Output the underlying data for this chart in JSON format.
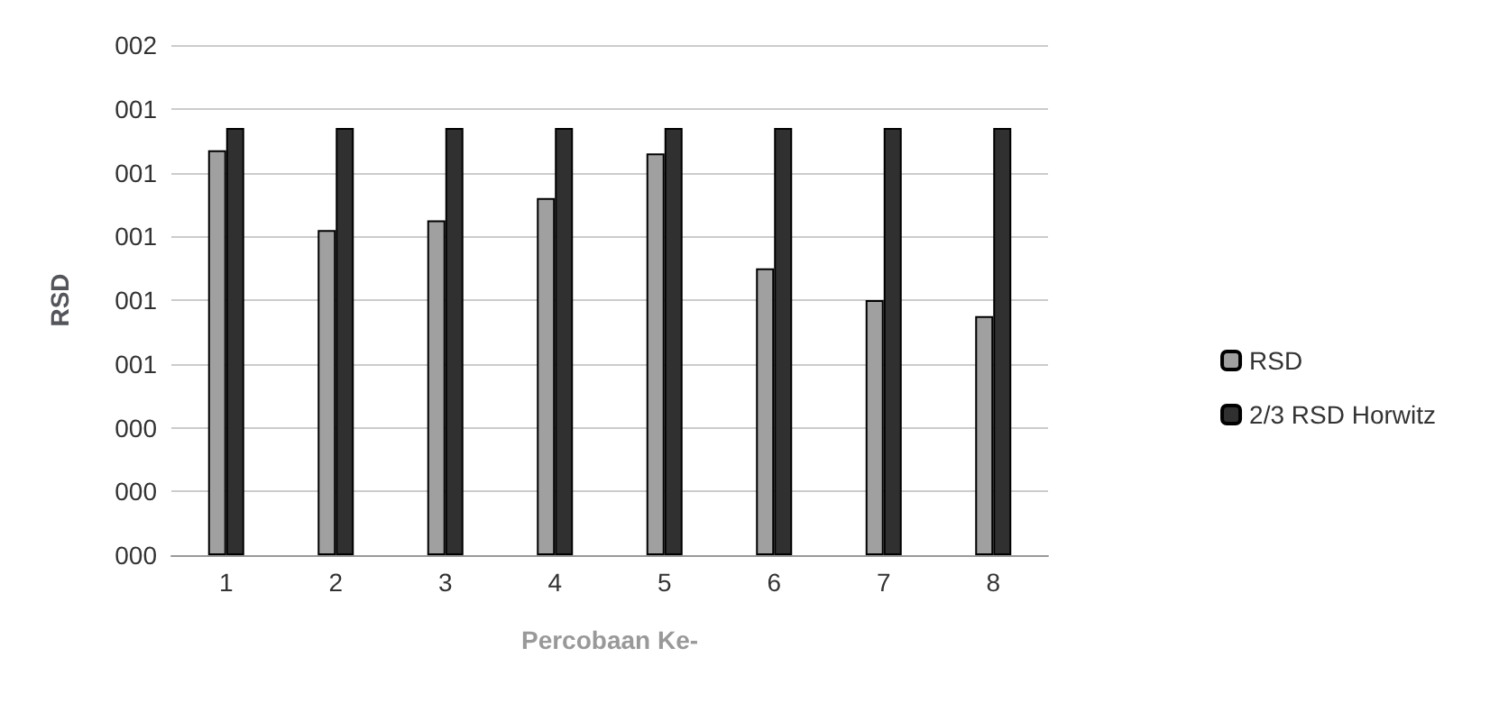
{
  "chart_data": {
    "type": "bar",
    "xlabel": "Percobaan Ke-",
    "ylabel": "RSD",
    "categories": [
      "1",
      "2",
      "3",
      "4",
      "5",
      "6",
      "7",
      "8"
    ],
    "series": [
      {
        "name": "RSD",
        "color": "#a0a0a0",
        "values": [
          1.27,
          1.02,
          1.05,
          1.12,
          1.26,
          0.9,
          0.8,
          0.75
        ]
      },
      {
        "name": "2/3 RSD Horwitz",
        "color": "#303030",
        "values": [
          1.34,
          1.34,
          1.34,
          1.34,
          1.34,
          1.34,
          1.34,
          1.34
        ]
      }
    ],
    "ylim": [
      0,
      1.6
    ],
    "yticks": [
      {
        "value": 0,
        "label": "000"
      },
      {
        "value": 0.2,
        "label": "000"
      },
      {
        "value": 0.4,
        "label": "000"
      },
      {
        "value": 0.6,
        "label": "001"
      },
      {
        "value": 0.8,
        "label": "001"
      },
      {
        "value": 1,
        "label": "001"
      },
      {
        "value": 1.2,
        "label": "001"
      },
      {
        "value": 1.4,
        "label": "001"
      },
      {
        "value": 1.6,
        "label": "002"
      }
    ],
    "grid": true,
    "legend": "right"
  }
}
